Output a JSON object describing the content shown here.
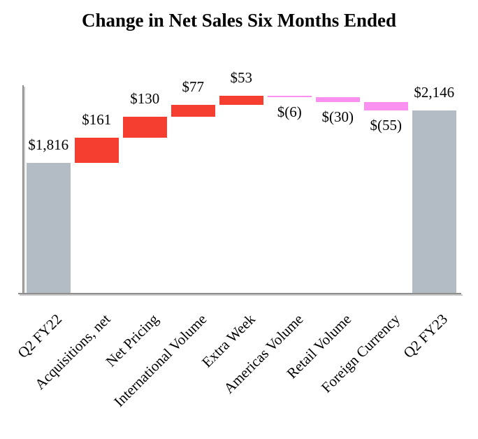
{
  "chart_data": {
    "type": "bar",
    "subtype": "waterfall",
    "title": "Change in Net Sales Six Months Ended",
    "xlabel": "",
    "ylabel": "",
    "categories": [
      "Q2 FY22",
      "Acquisitions, net",
      "Net Pricing",
      "International Volume",
      "Extra Week",
      "Americas Volume",
      "Retail Volume",
      "Foreign Currency",
      "Q2 FY23"
    ],
    "values": [
      1816,
      161,
      130,
      77,
      53,
      -6,
      -30,
      -55,
      2146
    ],
    "value_labels": [
      "$1,816",
      "$161",
      "$130",
      "$77",
      "$53",
      "$(6)",
      "$(30)",
      "$(55)",
      "$2,146"
    ],
    "bar_types": [
      "total",
      "increase",
      "increase",
      "increase",
      "increase",
      "decrease",
      "decrease",
      "decrease",
      "total"
    ],
    "cumulative": [
      1816,
      1977,
      2107,
      2184,
      2237,
      2231,
      2201,
      2146,
      2146
    ],
    "axis_min": 1000,
    "axis_max": 2300,
    "grid": false,
    "legend": false,
    "colors": {
      "total": "#B3BCC5",
      "increase": "#F53E30",
      "decrease": "#FA90F0",
      "axis": "#8E8E8E",
      "axis_shadow": "#C9C9C9",
      "text": "#000000"
    }
  }
}
